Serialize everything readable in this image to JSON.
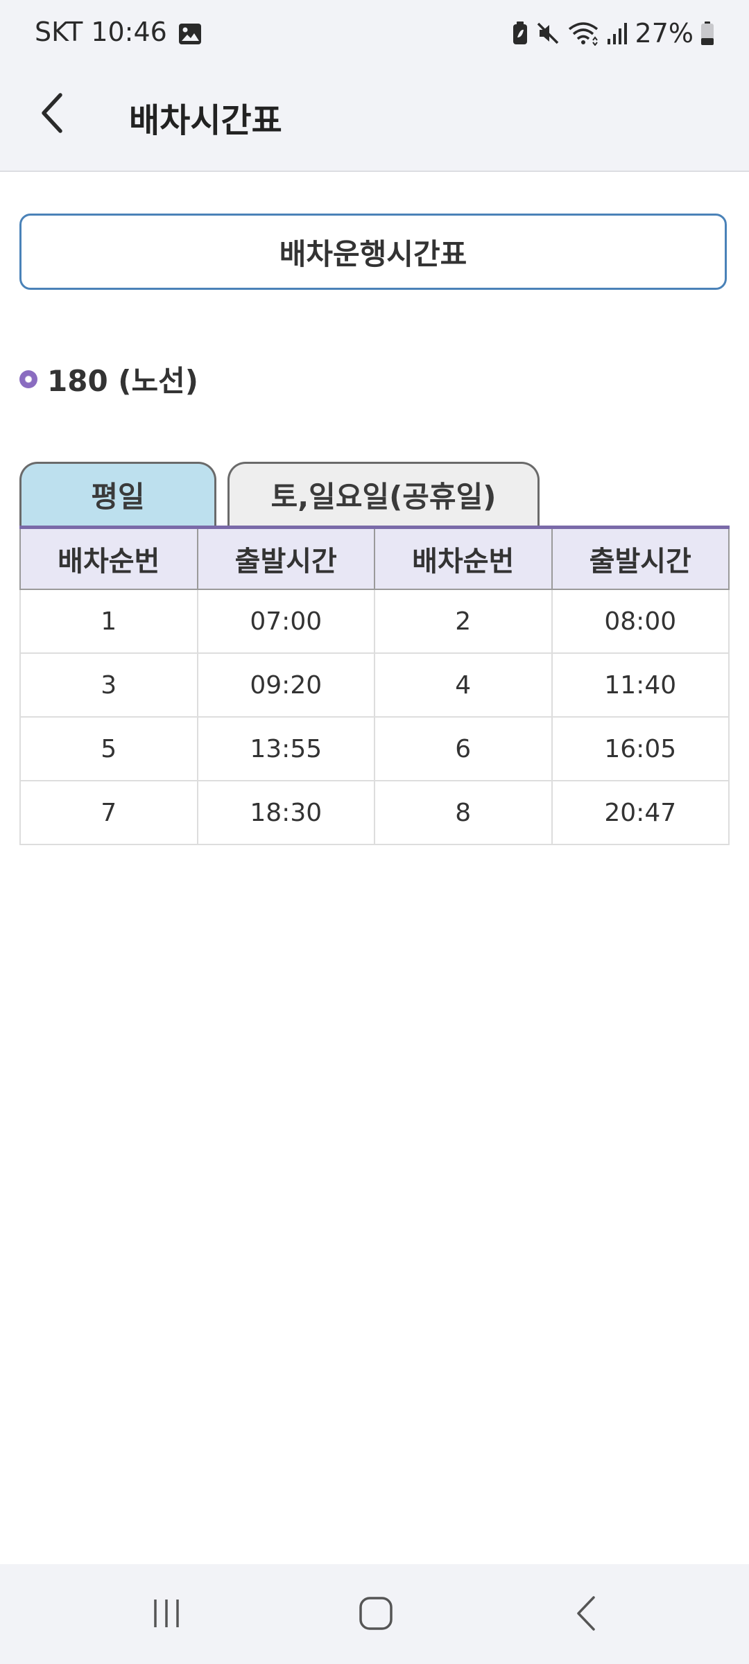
{
  "status_bar": {
    "carrier": "SKT",
    "time": "10:46",
    "battery_percent": "27%",
    "icons": [
      "image-icon",
      "battery-saver-icon",
      "mute-icon",
      "wifi-icon",
      "signal-icon",
      "battery-icon"
    ]
  },
  "app_bar": {
    "title": "배차시간표",
    "back_icon": "back-arrow-icon"
  },
  "schedule_button": {
    "label": "배차운행시간표",
    "border_color": "#4a82b8"
  },
  "route": {
    "label": "180 (노선)",
    "bullet_color": "#8a6cc0"
  },
  "tabs": [
    {
      "label": "평일",
      "selected": true,
      "color": "#bde0ee"
    },
    {
      "label": "토,일요일(공휴일)",
      "selected": false,
      "color": "#eeeeee"
    }
  ],
  "timetable": {
    "headers": [
      "배차순번",
      "출발시간",
      "배차순번",
      "출발시간"
    ],
    "rows": [
      [
        "1",
        "07:00",
        "2",
        "08:00"
      ],
      [
        "3",
        "09:20",
        "4",
        "11:40"
      ],
      [
        "5",
        "13:55",
        "6",
        "16:05"
      ],
      [
        "7",
        "18:30",
        "8",
        "20:47"
      ]
    ],
    "header_bg": "#e8e7f5",
    "accent_line": "#7a6aa8"
  },
  "nav_bar": {
    "buttons": [
      "recent-apps-icon",
      "home-icon",
      "back-icon"
    ]
  }
}
